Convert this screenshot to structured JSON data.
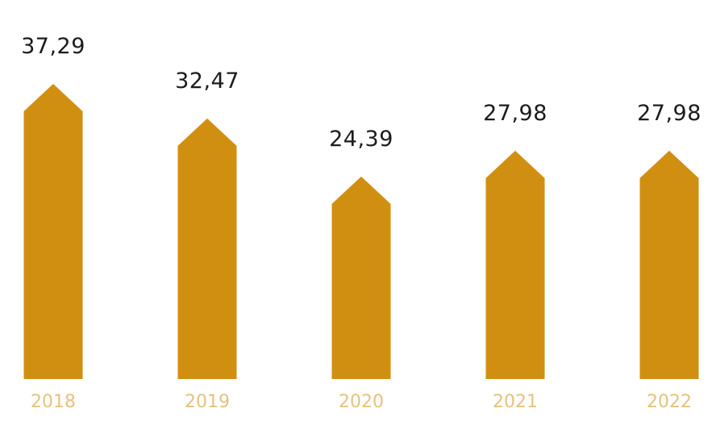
{
  "chart_data": {
    "type": "bar",
    "categories": [
      "2018",
      "2019",
      "2020",
      "2021",
      "2022"
    ],
    "values": [
      37.29,
      32.47,
      24.39,
      27.98,
      27.98
    ],
    "data_labels": [
      "37,29",
      "32,47",
      "24,39",
      "27,98",
      "27,98"
    ],
    "title": "",
    "xlabel": "",
    "ylabel": "",
    "grid": false,
    "legend": "none"
  },
  "colors": {
    "bar": "#D18F11",
    "category_label": "#E6C27D",
    "value_label": "#1b1b1b"
  }
}
